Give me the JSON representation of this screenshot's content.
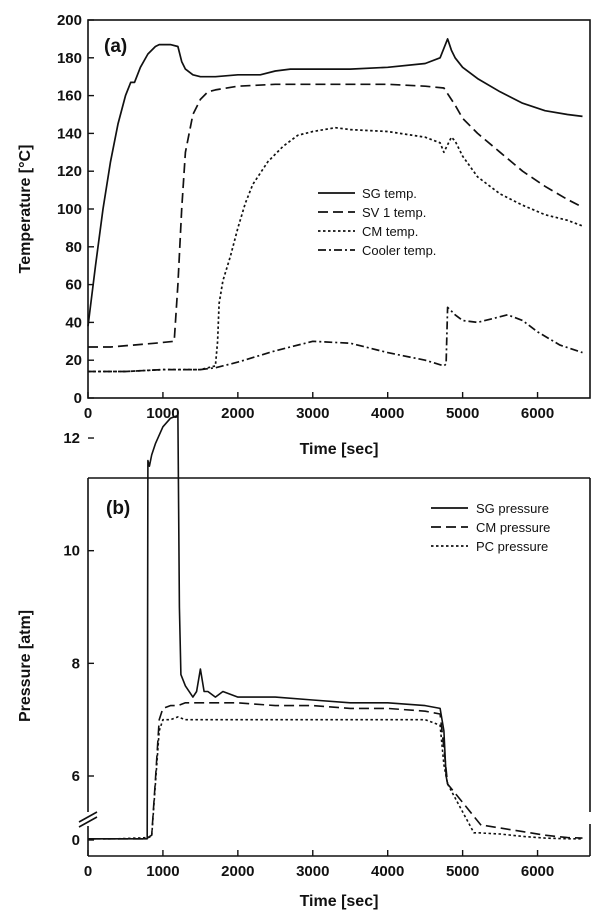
{
  "chart_data": [
    {
      "type": "line",
      "panel_label": "(a)",
      "xlabel": "Time [sec]",
      "ylabel": "Temperature [°C]",
      "xlim": [
        0,
        6700
      ],
      "ylim": [
        0,
        200
      ],
      "xticks": [
        0,
        1000,
        2000,
        3000,
        4000,
        5000,
        6000
      ],
      "yticks": [
        0,
        20,
        40,
        60,
        80,
        100,
        120,
        140,
        160,
        180,
        200
      ],
      "grid": false,
      "legend_position": "center-right",
      "series": [
        {
          "name": "SG temp.",
          "dash": "solid",
          "x": [
            0,
            100,
            200,
            300,
            400,
            500,
            570,
            620,
            700,
            800,
            900,
            950,
            1000,
            1100,
            1200,
            1250,
            1300,
            1400,
            1500,
            1700,
            2000,
            2300,
            2500,
            2700,
            3000,
            3500,
            4000,
            4500,
            4700,
            4800,
            4850,
            4900,
            5000,
            5200,
            5500,
            5800,
            6100,
            6400,
            6600
          ],
          "y": [
            38,
            70,
            100,
            125,
            145,
            160,
            167,
            167,
            175,
            182,
            186,
            187,
            187,
            187,
            186,
            178,
            174,
            171,
            170,
            170,
            171,
            171,
            173,
            174,
            174,
            174,
            175,
            177,
            180,
            190,
            184,
            180,
            175,
            169,
            162,
            156,
            152,
            150,
            149
          ]
        },
        {
          "name": "SV 1 temp.",
          "dash": "dashed",
          "x": [
            0,
            300,
            600,
            900,
            1150,
            1200,
            1250,
            1300,
            1400,
            1500,
            1600,
            1700,
            2000,
            2500,
            3000,
            3500,
            4000,
            4500,
            4750,
            4800,
            4900,
            5000,
            5200,
            5500,
            5800,
            6100,
            6400,
            6600
          ],
          "y": [
            27,
            27,
            28,
            29,
            30,
            60,
            100,
            130,
            150,
            158,
            162,
            163,
            165,
            166,
            166,
            166,
            166,
            165,
            164,
            161,
            155,
            148,
            140,
            130,
            120,
            112,
            105,
            101
          ]
        },
        {
          "name": "CM temp.",
          "dash": "dotted",
          "x": [
            0,
            500,
            1000,
            1500,
            1700,
            1730,
            1750,
            1800,
            1900,
            2000,
            2100,
            2200,
            2400,
            2600,
            2800,
            3000,
            3300,
            3500,
            4000,
            4500,
            4700,
            4750,
            4800,
            4850,
            4900,
            5000,
            5200,
            5500,
            5800,
            6100,
            6400,
            6600
          ],
          "y": [
            14,
            14,
            15,
            15,
            17,
            30,
            50,
            62,
            75,
            90,
            103,
            113,
            125,
            133,
            139,
            141,
            143,
            142,
            141,
            138,
            135,
            130,
            134,
            138,
            136,
            128,
            117,
            108,
            102,
            97,
            94,
            91
          ]
        },
        {
          "name": "Cooler temp.",
          "dash": "dashdot",
          "x": [
            0,
            500,
            1000,
            1500,
            1700,
            2000,
            2500,
            3000,
            3500,
            4000,
            4500,
            4750,
            4780,
            4800,
            4900,
            5000,
            5200,
            5400,
            5600,
            5800,
            6000,
            6300,
            6600
          ],
          "y": [
            14,
            14,
            15,
            15,
            16,
            19,
            25,
            30,
            29,
            24,
            20,
            17,
            18,
            48,
            44,
            41,
            40,
            42,
            44,
            41,
            35,
            28,
            24
          ]
        }
      ]
    },
    {
      "type": "line",
      "panel_label": "(b)",
      "xlabel": "Time [sec]",
      "ylabel": "Pressure [atm]",
      "xlim": [
        0,
        6700
      ],
      "yticks": [
        0,
        6,
        8,
        10,
        12
      ],
      "xticks": [
        0,
        1000,
        2000,
        3000,
        4000,
        5000,
        6000
      ],
      "axis_break": "between 0 and 6",
      "grid": false,
      "legend_position": "top-right",
      "series": [
        {
          "name": "SG pressure",
          "dash": "solid",
          "x": [
            0,
            400,
            790,
            800,
            820,
            850,
            900,
            1000,
            1100,
            1200,
            1220,
            1240,
            1300,
            1400,
            1450,
            1500,
            1550,
            1600,
            1700,
            1800,
            2000,
            2500,
            3000,
            3500,
            4000,
            4500,
            4700,
            4750,
            4780,
            4800
          ],
          "y": [
            0.05,
            0.05,
            0.05,
            11.6,
            11.5,
            11.7,
            11.9,
            12.2,
            12.35,
            12.4,
            9.0,
            7.8,
            7.6,
            7.4,
            7.5,
            7.9,
            7.5,
            7.5,
            7.4,
            7.5,
            7.4,
            7.4,
            7.35,
            7.3,
            7.3,
            7.25,
            7.2,
            6.8,
            6.0,
            5.0
          ]
        },
        {
          "name": "CM pressure",
          "dash": "dashed",
          "x": [
            0,
            400,
            790,
            800,
            850,
            900,
            950,
            1000,
            1100,
            1200,
            1300,
            1500,
            2000,
            2500,
            3000,
            3500,
            4000,
            4500,
            4700,
            4750,
            4800,
            5250,
            5300,
            5500,
            5800,
            6100,
            6400,
            6600
          ],
          "y": [
            0.05,
            0.05,
            0.05,
            0.1,
            0.2,
            5.5,
            7.0,
            7.2,
            7.25,
            7.25,
            7.3,
            7.3,
            7.3,
            7.25,
            7.25,
            7.2,
            7.2,
            7.15,
            7.1,
            6.5,
            5.0,
            0.6,
            0.6,
            0.5,
            0.35,
            0.2,
            0.1,
            0.08
          ]
        },
        {
          "name": "PC pressure",
          "dash": "dotted",
          "x": [
            0,
            400,
            800,
            850,
            900,
            950,
            1000,
            1100,
            1200,
            1300,
            1500,
            2000,
            2500,
            3000,
            3500,
            4000,
            4500,
            4700,
            4750,
            4800,
            5150,
            5200,
            5500,
            5800,
            6100,
            6400,
            6600
          ],
          "y": [
            0.05,
            0.05,
            0.1,
            0.15,
            5.0,
            6.8,
            7.0,
            7.0,
            7.05,
            7.0,
            7.0,
            7.0,
            7.0,
            7.0,
            7.0,
            7.0,
            7.0,
            6.9,
            6.2,
            5.0,
            0.3,
            0.3,
            0.25,
            0.15,
            0.08,
            0.05,
            0.05
          ]
        }
      ]
    }
  ]
}
